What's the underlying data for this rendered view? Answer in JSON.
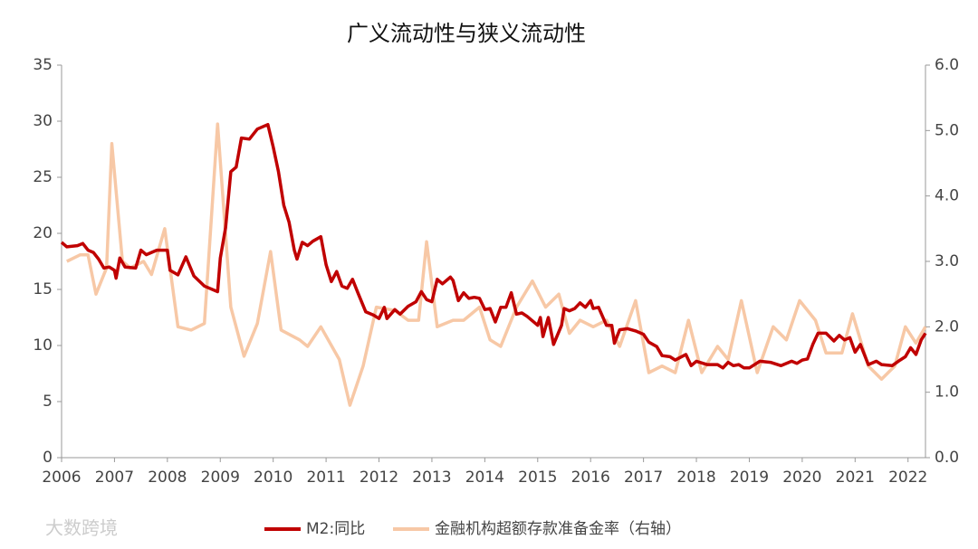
{
  "chart_data": {
    "type": "line",
    "title": "广义流动性与狭义流动性",
    "watermark": "大数跨境",
    "xlim": [
      2006,
      2022.33
    ],
    "xticks": [
      2006,
      2007,
      2008,
      2009,
      2010,
      2011,
      2012,
      2013,
      2014,
      2015,
      2016,
      2017,
      2018,
      2019,
      2020,
      2021,
      2022
    ],
    "ylim": [
      0,
      35
    ],
    "yticks": [
      0,
      5,
      10,
      15,
      20,
      25,
      30,
      35
    ],
    "y2lim": [
      0,
      6
    ],
    "y2ticks": [
      {
        "value": 0,
        "label": "0.0"
      },
      {
        "value": 1,
        "label": "1.0"
      },
      {
        "value": 2,
        "label": "2.0"
      },
      {
        "value": 3,
        "label": "3.0"
      },
      {
        "value": 4,
        "label": "4.0"
      },
      {
        "value": 5,
        "label": "5.0"
      },
      {
        "value": 6,
        "label": "6.0"
      }
    ],
    "series": [
      {
        "name": "M2:同比",
        "color": "#c00000",
        "x": [
          2006.0,
          2006.1,
          2006.3,
          2006.4,
          2006.5,
          2006.6,
          2006.7,
          2006.8,
          2006.9,
          2007.0,
          2007.03,
          2007.1,
          2007.2,
          2007.4,
          2007.5,
          2007.6,
          2007.8,
          2007.9,
          2008.0,
          2008.05,
          2008.2,
          2008.35,
          2008.5,
          2008.7,
          2008.95,
          2009.0,
          2009.1,
          2009.2,
          2009.3,
          2009.4,
          2009.55,
          2009.7,
          2009.9,
          2010.0,
          2010.1,
          2010.2,
          2010.3,
          2010.4,
          2010.45,
          2010.55,
          2010.65,
          2010.75,
          2010.9,
          2011.0,
          2011.1,
          2011.2,
          2011.3,
          2011.4,
          2011.5,
          2011.6,
          2011.75,
          2011.9,
          2012.0,
          2012.1,
          2012.15,
          2012.3,
          2012.4,
          2012.55,
          2012.7,
          2012.8,
          2012.9,
          2013.0,
          2013.1,
          2013.2,
          2013.35,
          2013.4,
          2013.5,
          2013.6,
          2013.7,
          2013.8,
          2013.9,
          2014.0,
          2014.1,
          2014.2,
          2014.3,
          2014.4,
          2014.5,
          2014.6,
          2014.7,
          2014.8,
          2014.9,
          2015.0,
          2015.05,
          2015.1,
          2015.2,
          2015.3,
          2015.45,
          2015.5,
          2015.6,
          2015.7,
          2015.8,
          2015.9,
          2016.0,
          2016.05,
          2016.15,
          2016.3,
          2016.4,
          2016.45,
          2016.55,
          2016.7,
          2016.85,
          2017.0,
          2017.1,
          2017.25,
          2017.35,
          2017.5,
          2017.6,
          2017.8,
          2017.9,
          2018.0,
          2018.2,
          2018.4,
          2018.5,
          2018.6,
          2018.7,
          2018.8,
          2018.9,
          2019.0,
          2019.2,
          2019.4,
          2019.6,
          2019.8,
          2019.9,
          2020.0,
          2020.1,
          2020.2,
          2020.3,
          2020.45,
          2020.6,
          2020.7,
          2020.8,
          2020.9,
          2021.0,
          2021.1,
          2021.25,
          2021.4,
          2021.5,
          2021.7,
          2021.85,
          2021.95,
          2022.05,
          2022.15,
          2022.25,
          2022.33
        ],
        "values": [
          19.2,
          18.8,
          18.9,
          19.1,
          18.5,
          18.3,
          17.7,
          16.9,
          17.0,
          16.7,
          16.0,
          17.8,
          17.0,
          16.9,
          18.5,
          18.1,
          18.5,
          18.5,
          18.5,
          16.7,
          16.3,
          17.9,
          16.2,
          15.3,
          14.8,
          17.8,
          20.5,
          25.5,
          25.9,
          28.5,
          28.4,
          29.3,
          29.7,
          27.7,
          25.5,
          22.5,
          21.0,
          18.5,
          17.7,
          19.2,
          18.9,
          19.3,
          19.7,
          17.2,
          15.7,
          16.6,
          15.3,
          15.1,
          15.9,
          14.7,
          13.0,
          12.7,
          12.4,
          13.4,
          12.4,
          13.2,
          12.8,
          13.5,
          13.9,
          14.8,
          14.1,
          13.9,
          15.9,
          15.5,
          16.1,
          15.8,
          14.0,
          14.7,
          14.2,
          14.3,
          14.2,
          13.2,
          13.3,
          12.1,
          13.4,
          13.4,
          14.7,
          12.8,
          12.9,
          12.6,
          12.2,
          11.8,
          12.5,
          10.8,
          12.5,
          10.1,
          11.8,
          13.3,
          13.1,
          13.3,
          13.8,
          13.4,
          14.0,
          13.3,
          13.4,
          11.8,
          11.8,
          10.2,
          11.4,
          11.5,
          11.3,
          11.0,
          10.3,
          9.9,
          9.1,
          9.0,
          8.7,
          9.2,
          8.2,
          8.6,
          8.3,
          8.3,
          8.0,
          8.5,
          8.2,
          8.3,
          8.0,
          8.0,
          8.6,
          8.5,
          8.2,
          8.6,
          8.4,
          8.7,
          8.8,
          10.1,
          11.1,
          11.1,
          10.4,
          10.9,
          10.5,
          10.7,
          9.4,
          10.1,
          8.3,
          8.6,
          8.3,
          8.2,
          8.7,
          9.0,
          9.8,
          9.2,
          10.5,
          11.1
        ]
      },
      {
        "name": "金融机构超额存款准备金率（右轴）",
        "color": "#f7c8a6",
        "axis": "y2",
        "x": [
          2006.1,
          2006.35,
          2006.5,
          2006.65,
          2006.85,
          2006.95,
          2007.15,
          2007.3,
          2007.55,
          2007.7,
          2007.95,
          2008.2,
          2008.45,
          2008.7,
          2008.95,
          2009.2,
          2009.45,
          2009.7,
          2009.95,
          2010.15,
          2010.5,
          2010.65,
          2010.9,
          2011.25,
          2011.45,
          2011.7,
          2011.95,
          2012.3,
          2012.55,
          2012.75,
          2012.9,
          2013.1,
          2013.4,
          2013.6,
          2013.9,
          2014.1,
          2014.3,
          2014.6,
          2014.9,
          2015.15,
          2015.4,
          2015.6,
          2015.8,
          2016.05,
          2016.3,
          2016.55,
          2016.85,
          2017.1,
          2017.35,
          2017.6,
          2017.85,
          2018.1,
          2018.4,
          2018.6,
          2018.85,
          2019.15,
          2019.45,
          2019.7,
          2019.95,
          2020.25,
          2020.45,
          2020.75,
          2020.95,
          2021.25,
          2021.5,
          2021.75,
          2021.95,
          2022.15,
          2022.33
        ],
        "values": [
          3.0,
          3.1,
          3.1,
          2.5,
          2.9,
          4.8,
          3.0,
          2.9,
          3.0,
          2.8,
          3.5,
          2.0,
          1.95,
          2.05,
          5.1,
          2.3,
          1.55,
          2.05,
          3.15,
          1.95,
          1.8,
          1.7,
          2.0,
          1.5,
          0.8,
          1.4,
          2.3,
          2.25,
          2.1,
          2.1,
          3.3,
          2.0,
          2.1,
          2.1,
          2.3,
          1.8,
          1.7,
          2.3,
          2.7,
          2.3,
          2.5,
          1.9,
          2.1,
          2.0,
          2.1,
          1.7,
          2.4,
          1.3,
          1.4,
          1.3,
          2.1,
          1.3,
          1.7,
          1.5,
          2.4,
          1.3,
          2.0,
          1.8,
          2.4,
          2.1,
          1.6,
          1.6,
          2.2,
          1.4,
          1.2,
          1.4,
          2.0,
          1.75,
          2.0
        ]
      }
    ]
  }
}
